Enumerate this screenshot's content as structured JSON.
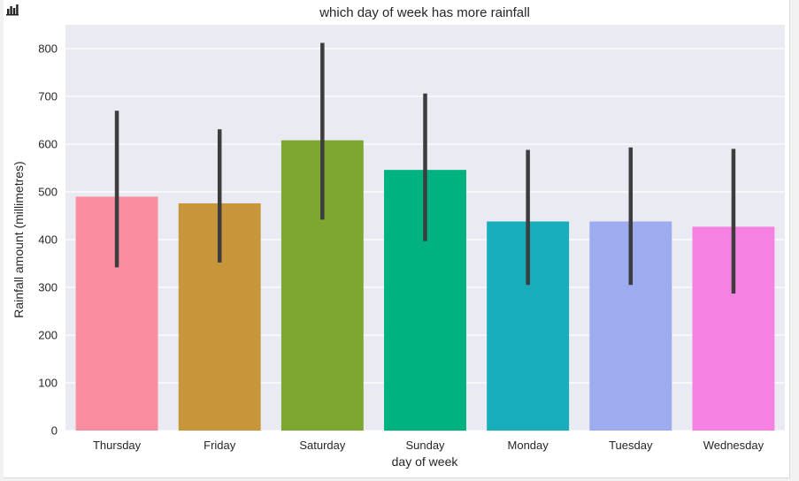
{
  "icon": "bar-chart-icon",
  "chart_data": {
    "type": "bar",
    "title": "which day of week has more rainfall",
    "xlabel": "day of week",
    "ylabel": "Rainfall amount (millimetres)",
    "categories": [
      "Thursday",
      "Friday",
      "Saturday",
      "Sunday",
      "Monday",
      "Tuesday",
      "Wednesday"
    ],
    "values": [
      490,
      476,
      608,
      546,
      438,
      438,
      427
    ],
    "error_low": [
      342,
      352,
      442,
      397,
      305,
      305,
      287
    ],
    "error_high": [
      670,
      631,
      812,
      706,
      588,
      593,
      590
    ],
    "colors": [
      "#f98ea0",
      "#c8963a",
      "#7ea72f",
      "#00b27f",
      "#17adbb",
      "#9dabef",
      "#f582e2"
    ],
    "ylim": [
      0,
      850
    ],
    "yticks": [
      0,
      100,
      200,
      300,
      400,
      500,
      600,
      700,
      800
    ],
    "grid": true,
    "background": "#eaeaf2",
    "error_color": "#3d3d3d"
  }
}
